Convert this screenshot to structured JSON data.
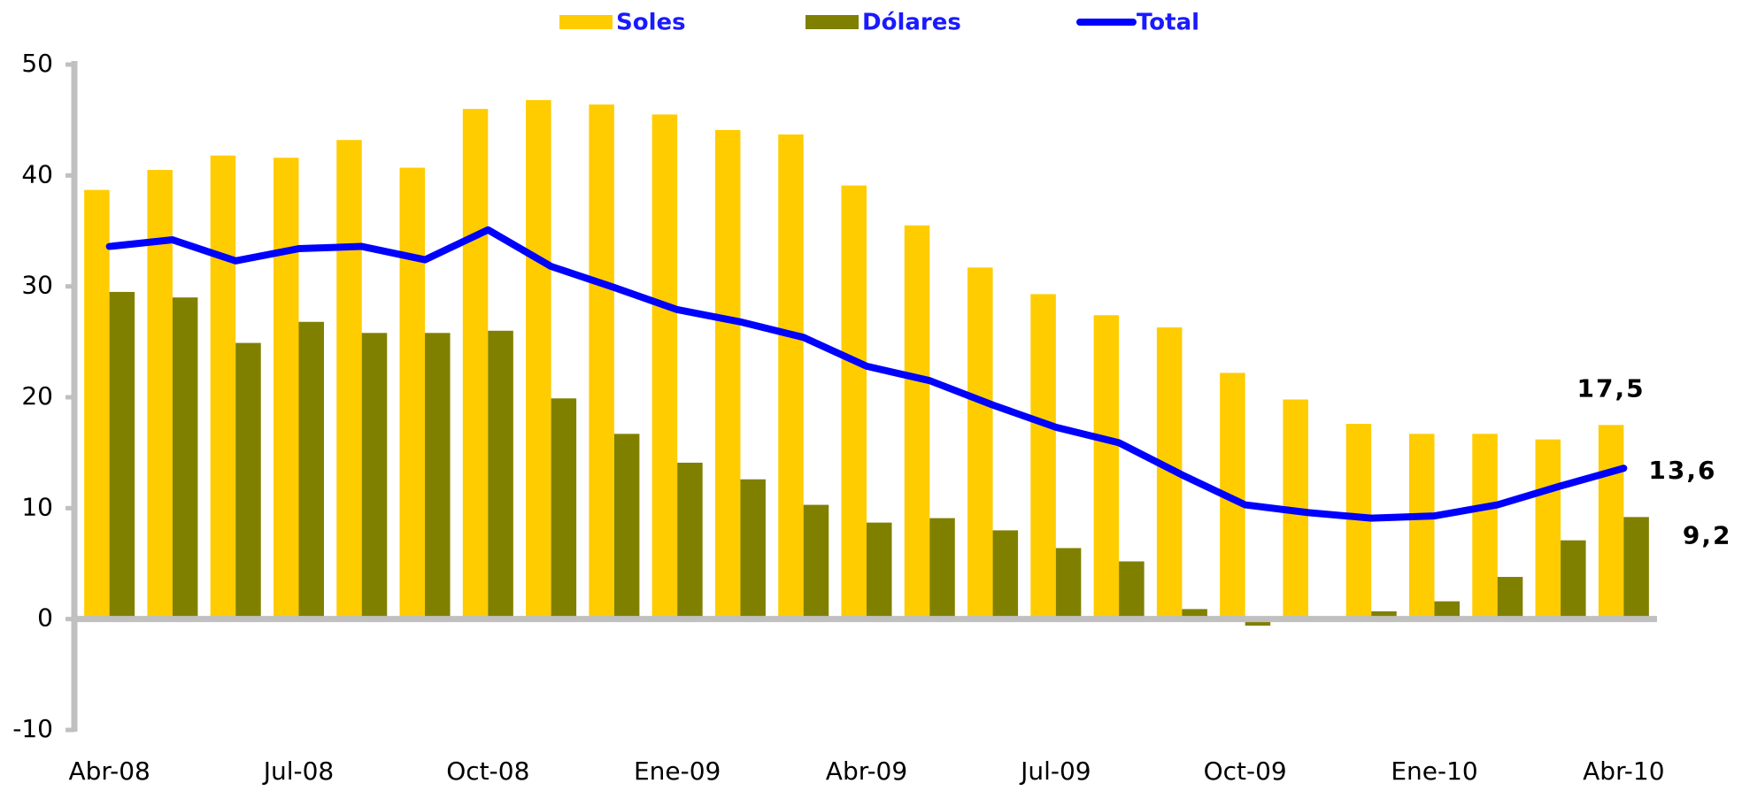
{
  "chart_data": {
    "type": "bar-line",
    "categories": [
      "Abr-08",
      null,
      null,
      "Jul-08",
      null,
      null,
      "Oct-08",
      null,
      null,
      "Ene-09",
      null,
      null,
      "Abr-09",
      null,
      null,
      "Jul-09",
      null,
      null,
      "Oct-09",
      null,
      null,
      "Ene-10",
      null,
      null,
      "Abr-10"
    ],
    "series": [
      {
        "name": "Soles",
        "type": "bar",
        "color": "#ffcc00",
        "values": [
          38.7,
          40.5,
          41.8,
          41.6,
          43.2,
          40.7,
          46.0,
          46.8,
          46.4,
          45.5,
          44.1,
          43.7,
          39.1,
          35.5,
          31.7,
          29.3,
          27.4,
          26.3,
          22.2,
          19.8,
          17.6,
          16.7,
          16.7,
          16.2,
          17.5
        ],
        "value_labels": [
          null,
          null,
          null,
          null,
          null,
          null,
          null,
          null,
          null,
          null,
          null,
          null,
          null,
          null,
          null,
          null,
          null,
          null,
          null,
          null,
          null,
          null,
          null,
          null,
          "17,5"
        ]
      },
      {
        "name": "Dólares",
        "type": "bar",
        "color": "#808000",
        "values": [
          29.5,
          29.0,
          24.9,
          26.8,
          25.8,
          25.8,
          26.0,
          19.9,
          16.7,
          14.1,
          12.6,
          10.3,
          8.7,
          9.1,
          8.0,
          6.4,
          5.2,
          0.9,
          -0.6,
          0.0,
          0.7,
          1.6,
          3.8,
          7.1,
          9.2
        ],
        "value_labels": [
          null,
          null,
          null,
          null,
          null,
          null,
          null,
          null,
          null,
          null,
          null,
          null,
          null,
          null,
          null,
          null,
          null,
          null,
          null,
          null,
          null,
          null,
          null,
          null,
          "9,2"
        ]
      },
      {
        "name": "Total",
        "type": "line",
        "color": "#0000ff",
        "values": [
          33.6,
          34.2,
          32.3,
          33.4,
          33.6,
          32.4,
          35.1,
          31.8,
          29.9,
          27.9,
          26.8,
          25.4,
          22.8,
          21.5,
          19.3,
          17.3,
          15.9,
          13.0,
          10.3,
          9.6,
          9.1,
          9.3,
          10.3,
          12.0,
          13.6
        ],
        "value_labels": [
          null,
          null,
          null,
          null,
          null,
          null,
          null,
          null,
          null,
          null,
          null,
          null,
          null,
          null,
          null,
          null,
          null,
          null,
          null,
          null,
          null,
          null,
          null,
          null,
          "13,6"
        ]
      }
    ],
    "ylim": [
      -10,
      50
    ],
    "yticks": [
      -10,
      0,
      10,
      20,
      30,
      40,
      50
    ],
    "grid": false,
    "legend": "top"
  }
}
